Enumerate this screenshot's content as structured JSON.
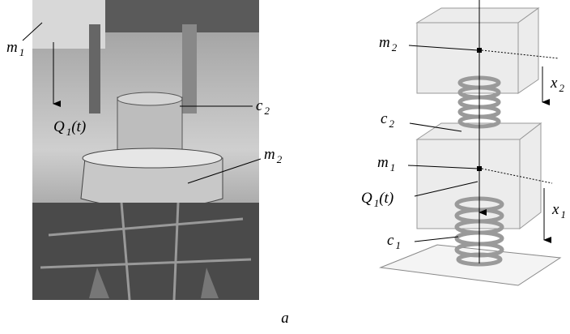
{
  "photo": {
    "labels": [
      {
        "base": "m",
        "sub": "1"
      },
      {
        "base": "Q",
        "sub": "1",
        "tail": "(t)"
      },
      {
        "base": "c",
        "sub": "2"
      },
      {
        "base": "m",
        "sub": "2"
      }
    ]
  },
  "diagram": {
    "labels": [
      {
        "base": "m",
        "sub": "2"
      },
      {
        "base": "x",
        "sub": "2"
      },
      {
        "base": "c",
        "sub": "2"
      },
      {
        "base": "m",
        "sub": "1"
      },
      {
        "base": "Q",
        "sub": "1",
        "tail": "(t)"
      },
      {
        "base": "x",
        "sub": "1"
      },
      {
        "base": "c",
        "sub": "1"
      }
    ]
  },
  "caption": "a"
}
